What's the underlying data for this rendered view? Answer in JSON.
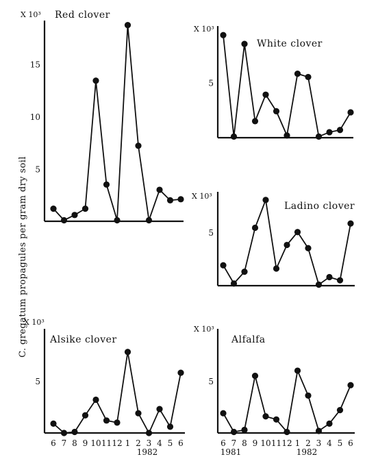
{
  "figure": {
    "ylabel": "C. gregatum propagules per gram dry soil",
    "x_month_labels": [
      "6",
      "7",
      "8",
      "9",
      "10",
      "11",
      "12",
      "1",
      "2",
      "3",
      "4",
      "5",
      "6"
    ],
    "year_labels": {
      "left": "1982",
      "right_a": "1981",
      "right_b": "1982"
    }
  },
  "chart_data": [
    {
      "type": "line",
      "title": "Red clover",
      "multiplier": "X 10³",
      "ylim": [
        0,
        19
      ],
      "yticks": [
        5,
        10,
        15
      ],
      "x": [
        "6",
        "7",
        "8",
        "9",
        "10",
        "11",
        "12",
        "1",
        "2",
        "3",
        "4",
        "5",
        "6"
      ],
      "values": [
        1.2,
        0.1,
        0.6,
        1.2,
        13.4,
        3.5,
        0.1,
        18.7,
        7.2,
        0.1,
        3.0,
        2.0,
        2.1
      ]
    },
    {
      "type": "line",
      "title": "White clover",
      "multiplier": "X 10³",
      "ylim": [
        0,
        9.5
      ],
      "yticks": [
        5
      ],
      "x": [
        "6",
        "7",
        "8",
        "9",
        "10",
        "11",
        "12",
        "1",
        "2",
        "3",
        "4",
        "5",
        "6"
      ],
      "values": [
        9.3,
        0.1,
        8.5,
        1.5,
        3.9,
        2.4,
        0.2,
        5.8,
        5.5,
        0.1,
        0.5,
        0.7,
        2.3
      ]
    },
    {
      "type": "line",
      "title": "Ladino clover",
      "multiplier": "X 10³",
      "ylim": [
        0,
        8.5
      ],
      "yticks": [
        5
      ],
      "x": [
        "6",
        "7",
        "8",
        "9",
        "10",
        "11",
        "12",
        "1",
        "2",
        "3",
        "4",
        "5",
        "6"
      ],
      "values": [
        1.9,
        0.2,
        1.3,
        5.4,
        8.0,
        1.6,
        3.8,
        5.0,
        3.5,
        0.1,
        0.8,
        0.5,
        5.8
      ]
    },
    {
      "type": "line",
      "title": "Alsike clover",
      "multiplier": "X 10³",
      "ylim": [
        0,
        9.5
      ],
      "yticks": [
        5
      ],
      "x": [
        "6",
        "7",
        "8",
        "9",
        "10",
        "11",
        "12",
        "1",
        "2",
        "3",
        "4",
        "5",
        "6"
      ],
      "values": [
        0.9,
        0.0,
        0.1,
        1.7,
        3.2,
        1.2,
        1.0,
        7.8,
        1.9,
        0.0,
        2.3,
        0.6,
        5.8
      ]
    },
    {
      "type": "line",
      "title": "Alfalfa",
      "multiplier": "X 10³",
      "ylim": [
        0,
        9.5
      ],
      "yticks": [
        5
      ],
      "x": [
        "6",
        "7",
        "8",
        "9",
        "10",
        "11",
        "12",
        "1",
        "2",
        "3",
        "4",
        "5",
        "6"
      ],
      "values": [
        1.9,
        0.1,
        0.3,
        5.5,
        1.6,
        1.3,
        0.1,
        6.0,
        3.6,
        0.2,
        0.9,
        2.2,
        4.6
      ]
    }
  ]
}
